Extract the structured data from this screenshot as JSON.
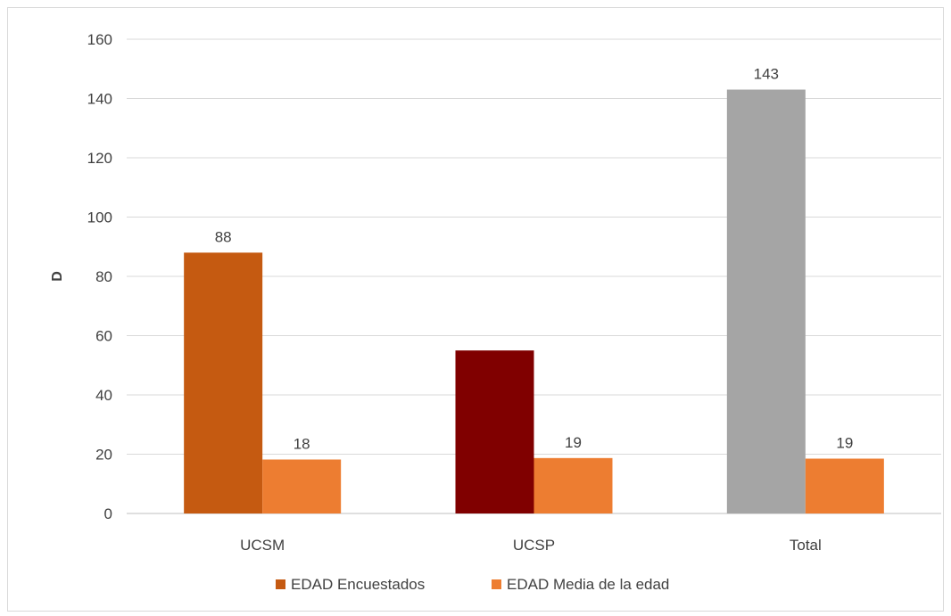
{
  "chart_data": {
    "type": "bar",
    "categories": [
      "UCSM",
      "UCSP",
      "Total"
    ],
    "series": [
      {
        "name": "EDAD Encuestados",
        "values": [
          88,
          55,
          143
        ],
        "labels": [
          "88",
          "",
          "143"
        ],
        "color": "#c55a11",
        "point_colors": [
          "#c55a11",
          "#800000",
          "#a5a5a5"
        ]
      },
      {
        "name": "EDAD Media de la edad",
        "values": [
          18.2,
          18.7,
          18.5
        ],
        "labels": [
          "18",
          "19",
          "19"
        ],
        "color": "#ed7d31",
        "point_colors": [
          "#ed7d31",
          "#ed7d31",
          "#ed7d31"
        ]
      }
    ],
    "ylabel": "D",
    "ylim": [
      0,
      160
    ],
    "yticks": [
      0,
      20,
      40,
      60,
      80,
      100,
      120,
      140,
      160
    ],
    "grid": true,
    "legend": "bottom"
  }
}
